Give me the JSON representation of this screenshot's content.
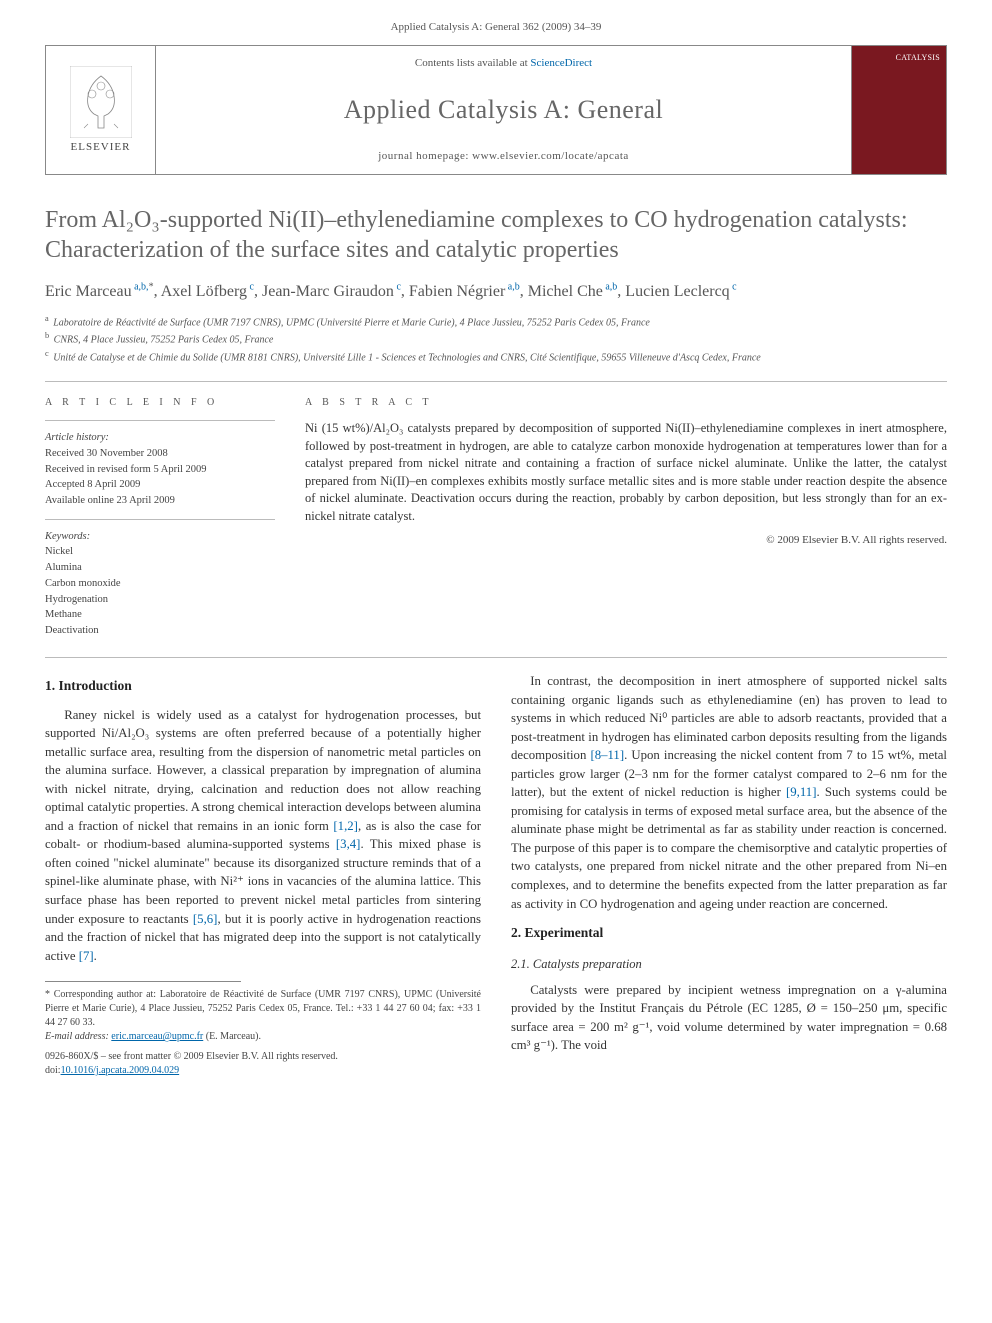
{
  "journal_ref": "Applied Catalysis A: General 362 (2009) 34–39",
  "header": {
    "publisher": "ELSEVIER",
    "contents_prefix": "Contents lists available at ",
    "contents_link": "ScienceDirect",
    "journal_name": "Applied Catalysis A: General",
    "homepage_prefix": "journal homepage: ",
    "homepage_url": "www.elsevier.com/locate/apcata",
    "cover_label": "CATALYSIS"
  },
  "title": "From Al₂O₃-supported Ni(II)–ethylenediamine complexes to CO hydrogenation catalysts: Characterization of the surface sites and catalytic properties",
  "authors": [
    {
      "name": "Eric Marceau",
      "aff": "a,b,",
      "star": "*"
    },
    {
      "name": "Axel Löfberg",
      "aff": "c"
    },
    {
      "name": "Jean-Marc Giraudon",
      "aff": "c"
    },
    {
      "name": "Fabien Négrier",
      "aff": "a,b"
    },
    {
      "name": "Michel Che",
      "aff": "a,b"
    },
    {
      "name": "Lucien Leclercq",
      "aff": "c"
    }
  ],
  "affiliations": [
    {
      "sup": "a",
      "text": "Laboratoire de Réactivité de Surface (UMR 7197 CNRS), UPMC (Université Pierre et Marie Curie), 4 Place Jussieu, 75252 Paris Cedex 05, France"
    },
    {
      "sup": "b",
      "text": "CNRS, 4 Place Jussieu, 75252 Paris Cedex 05, France"
    },
    {
      "sup": "c",
      "text": "Unité de Catalyse et de Chimie du Solide (UMR 8181 CNRS), Université Lille 1 - Sciences et Technologies and CNRS, Cité Scientifique, 59655 Villeneuve d'Ascq Cedex, France"
    }
  ],
  "article_info": {
    "label": "A R T I C L E   I N F O",
    "history_label": "Article history:",
    "history": [
      "Received 30 November 2008",
      "Received in revised form 5 April 2009",
      "Accepted 8 April 2009",
      "Available online 23 April 2009"
    ],
    "keywords_label": "Keywords:",
    "keywords": [
      "Nickel",
      "Alumina",
      "Carbon monoxide",
      "Hydrogenation",
      "Methane",
      "Deactivation"
    ]
  },
  "abstract": {
    "label": "A B S T R A C T",
    "text": "Ni (15 wt%)/Al₂O₃ catalysts prepared by decomposition of supported Ni(II)–ethylenediamine complexes in inert atmosphere, followed by post-treatment in hydrogen, are able to catalyze carbon monoxide hydrogenation at temperatures lower than for a catalyst prepared from nickel nitrate and containing a fraction of surface nickel aluminate. Unlike the latter, the catalyst prepared from Ni(II)–en complexes exhibits mostly surface metallic sites and is more stable under reaction despite the absence of nickel aluminate. Deactivation occurs during the reaction, probably by carbon deposition, but less strongly than for an ex-nickel nitrate catalyst.",
    "copyright": "© 2009 Elsevier B.V. All rights reserved."
  },
  "sections": {
    "s1_title": "1. Introduction",
    "s1_p1": "Raney nickel is widely used as a catalyst for hydrogenation processes, but supported Ni/Al₂O₃ systems are often preferred because of a potentially higher metallic surface area, resulting from the dispersion of nanometric metal particles on the alumina surface. However, a classical preparation by impregnation of alumina with nickel nitrate, drying, calcination and reduction does not allow reaching optimal catalytic properties. A strong chemical interaction develops between alumina and a fraction of nickel that remains in an ionic form ",
    "s1_p1_ref1": "[1,2]",
    "s1_p1_cont": ", as is also the case for cobalt- or rhodium-based alumina-supported systems ",
    "s1_p1_ref2": "[3,4]",
    "s1_p1_cont2": ". This mixed phase is often coined \"nickel aluminate\" because its disorganized structure reminds that of a spinel-like aluminate phase, with Ni²⁺ ions in vacancies of the alumina lattice. This surface phase has been reported to prevent nickel metal particles from sintering under exposure to reactants ",
    "s1_p1_ref3": "[5,6]",
    "s1_p1_cont3": ", but it is poorly active in hydrogenation reactions and the fraction of nickel that has migrated deep into the support is not catalytically active ",
    "s1_p1_ref4": "[7]",
    "s1_p1_cont4": ".",
    "s1_p2": "In contrast, the decomposition in inert atmosphere of supported nickel salts containing organic ligands such as ethylenediamine (en) has proven to lead to systems in which reduced Ni⁰ particles are able to adsorb reactants, provided that a post-treatment in hydrogen has eliminated carbon deposits resulting from the ligands decomposition ",
    "s1_p2_ref1": "[8–11]",
    "s1_p2_cont": ". Upon increasing the nickel content from 7 to 15 wt%, metal particles grow larger (2–3 nm for the former catalyst compared to 2–6 nm for the latter), but the extent of nickel reduction is higher ",
    "s1_p2_ref2": "[9,11]",
    "s1_p2_cont2": ". Such systems could be promising for catalysis in terms of exposed metal surface area, but the absence of the aluminate phase might be detrimental as far as stability under reaction is concerned. The purpose of this paper is to compare the chemisorptive and catalytic properties of two catalysts, one prepared from nickel nitrate and the other prepared from Ni–en complexes, and to determine the benefits expected from the latter preparation as far as activity in CO hydrogenation and ageing under reaction are concerned.",
    "s2_title": "2. Experimental",
    "s21_title": "2.1. Catalysts preparation",
    "s21_p1": "Catalysts were prepared by incipient wetness impregnation on a γ-alumina provided by the Institut Français du Pétrole (EC 1285, Ø = 150–250 μm, specific surface area = 200 m² g⁻¹, void volume determined by water impregnation = 0.68 cm³ g⁻¹). The void"
  },
  "footnotes": {
    "corr_prefix": "* Corresponding author at: Laboratoire de Réactivité de Surface (UMR 7197 CNRS), UPMC (Université Pierre et Marie Curie), 4 Place Jussieu, 75252 Paris Cedex 05, France. Tel.: +33 1 44 27 60 04; fax: +33 1 44 27 60 33.",
    "email_label": "E-mail address: ",
    "email": "eric.marceau@upmc.fr",
    "email_suffix": " (E. Marceau)."
  },
  "footer": {
    "issn_line": "0926-860X/$ – see front matter © 2009 Elsevier B.V. All rights reserved.",
    "doi_prefix": "doi:",
    "doi": "10.1016/j.apcata.2009.04.029"
  },
  "colors": {
    "link": "#0066aa",
    "title_gray": "#666666",
    "cover_bg": "#7a1820",
    "rule": "#bbbbbb",
    "text": "#333333"
  }
}
